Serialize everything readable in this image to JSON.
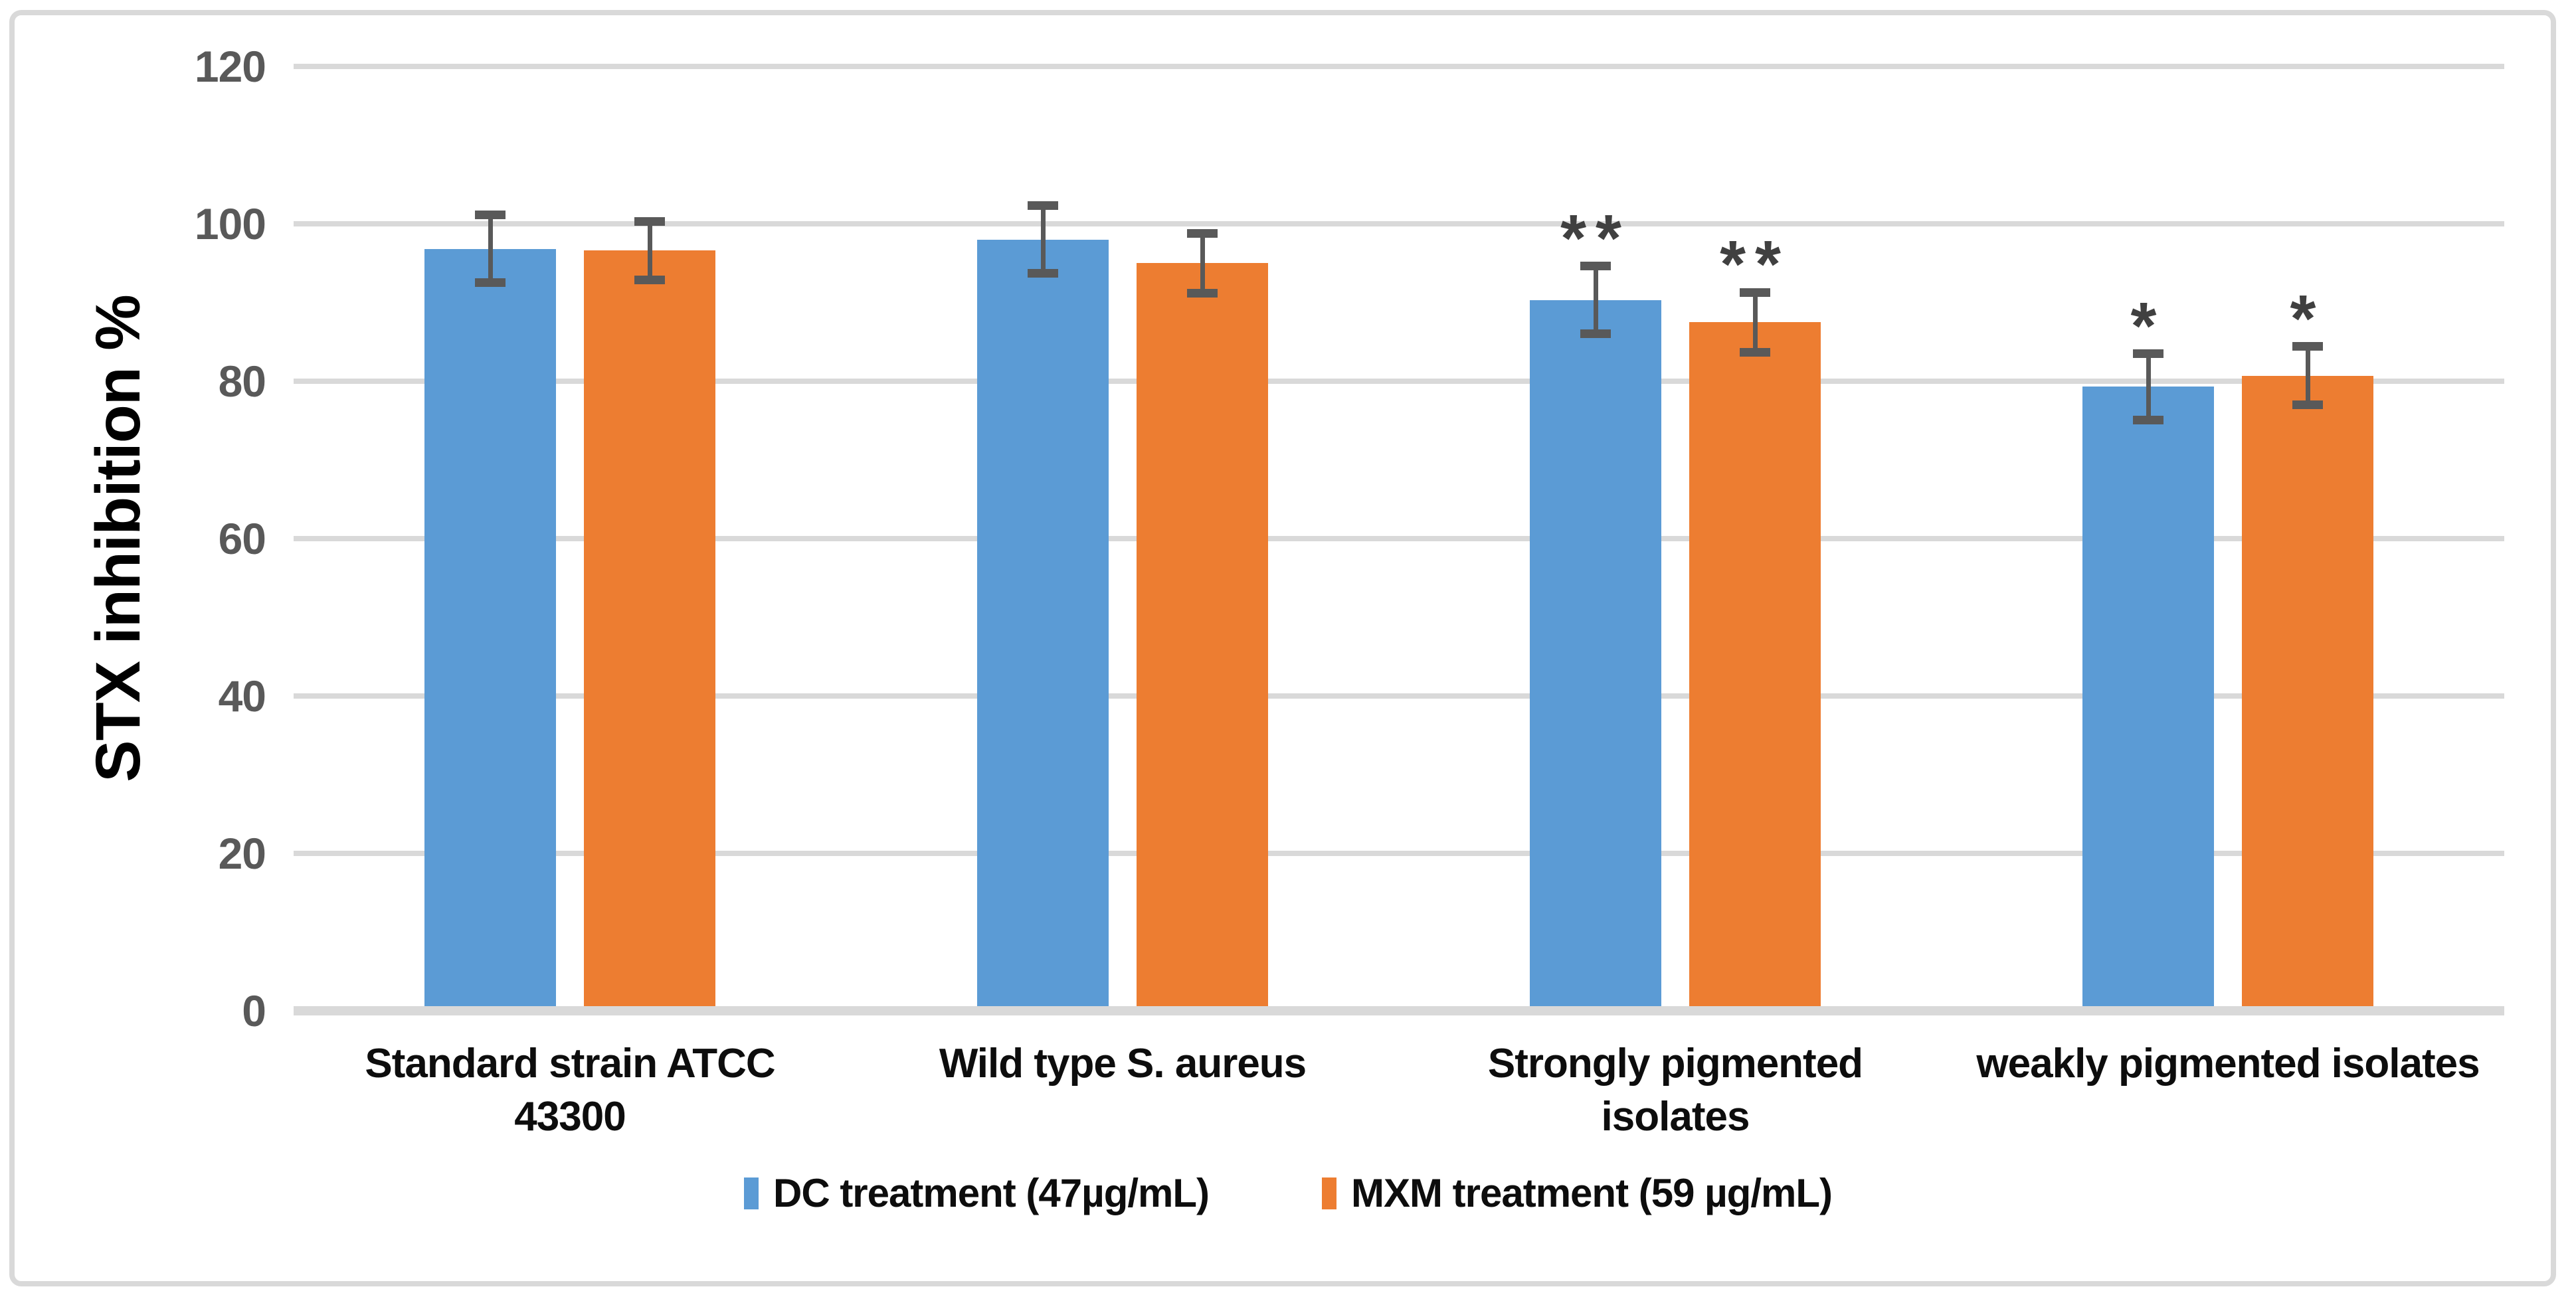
{
  "chart_data": {
    "type": "bar",
    "title": "",
    "xlabel": "",
    "ylabel": "STX inhibition %",
    "ylim": [
      0,
      120
    ],
    "yticks": [
      0,
      20,
      40,
      60,
      80,
      100,
      120
    ],
    "grid": "horizontal",
    "legend_position": "bottom",
    "categories": [
      "Standard strain ATCC 43300",
      "Wild type S. aureus",
      "Strongly pigmented isolates",
      "weakly pigmented isolates"
    ],
    "category_label_lines": [
      [
        "Standard strain ATCC",
        "43300"
      ],
      [
        "Wild type S. aureus"
      ],
      [
        "Strongly pigmented",
        "isolates"
      ],
      [
        "weakly pigmented isolates"
      ]
    ],
    "series": [
      {
        "name": "DC treatment (47µg/mL)",
        "color": "#5B9BD5",
        "values": [
          96.8,
          98,
          90.3,
          79.3
        ],
        "errors": [
          4.3,
          4.3,
          4.3,
          4.2
        ],
        "significance": [
          "",
          "",
          "**",
          "*"
        ]
      },
      {
        "name": "MXM treatment (59 µg/mL)",
        "color": "#ED7D31",
        "values": [
          96.6,
          95,
          87.5,
          80.7
        ],
        "errors": [
          3.7,
          3.8,
          3.8,
          3.7
        ],
        "significance": [
          "",
          "",
          "**",
          "*"
        ]
      }
    ],
    "error_bar_color": "#595959",
    "gridline_color": "#D9D9D9",
    "tick_label_color": "#595959",
    "category_label_color": "#0d0d0d",
    "significance_color": "#404040"
  }
}
